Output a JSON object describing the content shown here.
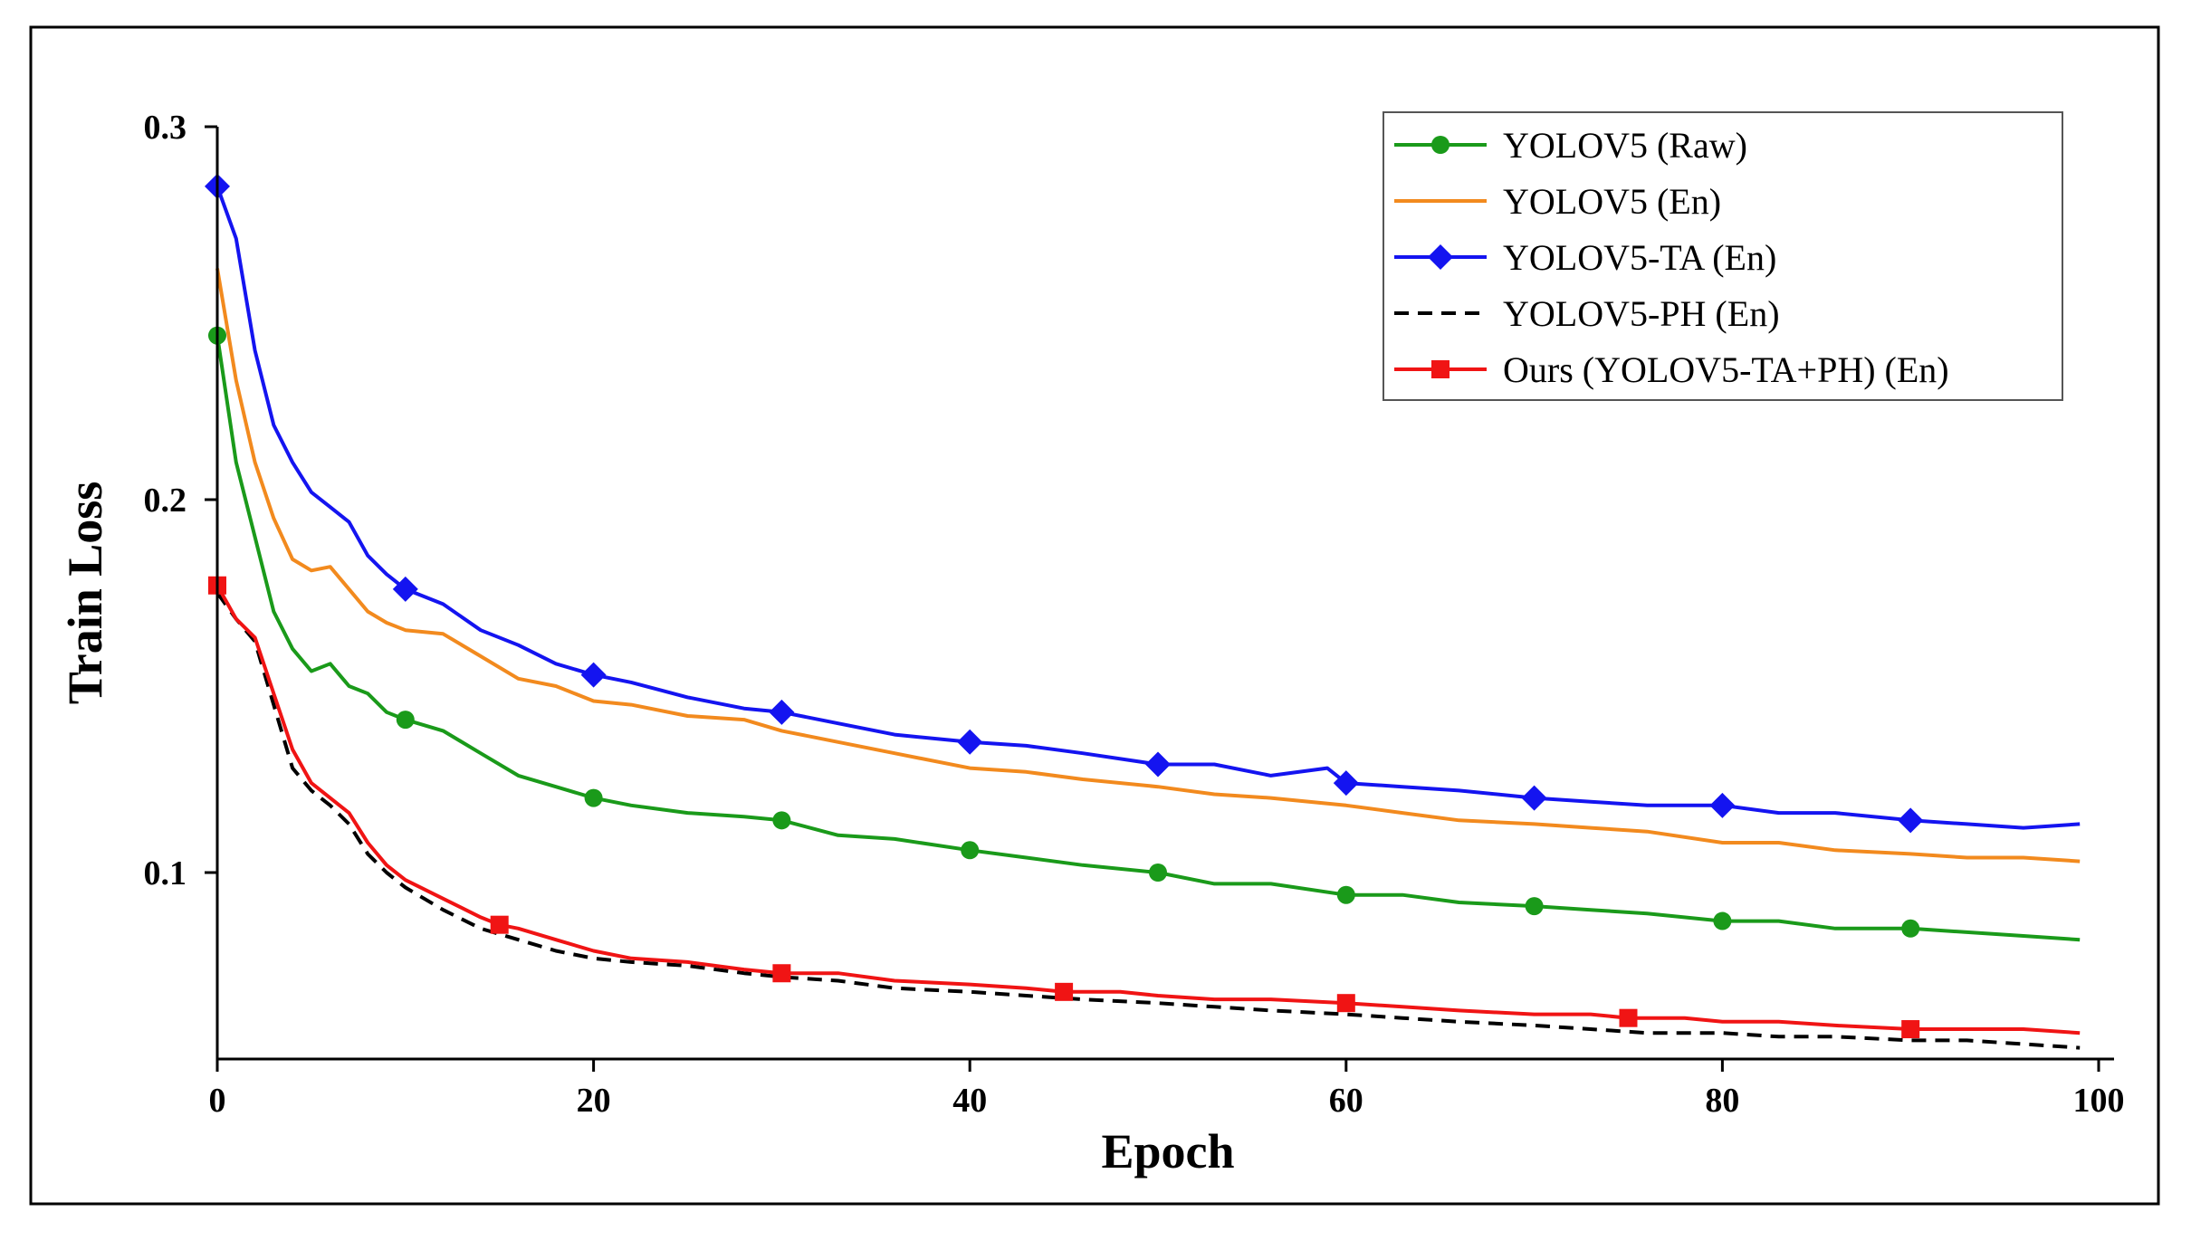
{
  "chart_data": {
    "type": "line",
    "title": "",
    "xlabel": "Epoch",
    "ylabel": "Train Loss",
    "xlim": [
      0,
      100
    ],
    "ylim": [
      0.05,
      0.3
    ],
    "xticks": [
      0,
      20,
      40,
      60,
      80,
      100
    ],
    "xtick_labels": [
      "0",
      "20",
      "40",
      "60",
      "80",
      "100"
    ],
    "yticks": [
      0.1,
      0.2,
      0.3
    ],
    "ytick_labels": [
      "0.1",
      "0.2",
      "0.3"
    ],
    "grid": false,
    "legend_position": "top-right",
    "series": [
      {
        "name": "YOLOV5 (Raw)",
        "color": "#1a9a1a",
        "marker": "circle",
        "dashed": false,
        "marker_epochs": [
          0,
          10,
          20,
          30,
          40,
          50,
          60,
          70,
          80,
          90
        ],
        "x": [
          0,
          1,
          2,
          3,
          4,
          5,
          6,
          7,
          8,
          9,
          10,
          12,
          14,
          16,
          18,
          20,
          22,
          25,
          28,
          30,
          33,
          36,
          40,
          43,
          46,
          50,
          53,
          56,
          60,
          63,
          66,
          70,
          73,
          76,
          80,
          83,
          86,
          90,
          93,
          96,
          99
        ],
        "values": [
          0.244,
          0.21,
          0.19,
          0.17,
          0.16,
          0.154,
          0.156,
          0.15,
          0.148,
          0.143,
          0.141,
          0.138,
          0.132,
          0.126,
          0.123,
          0.12,
          0.118,
          0.116,
          0.115,
          0.114,
          0.11,
          0.109,
          0.106,
          0.104,
          0.102,
          0.1,
          0.097,
          0.097,
          0.094,
          0.094,
          0.092,
          0.091,
          0.09,
          0.089,
          0.087,
          0.087,
          0.085,
          0.085,
          0.084,
          0.083,
          0.082
        ]
      },
      {
        "name": "YOLOV5 (En)",
        "color": "#f28a1e",
        "marker": "none",
        "dashed": false,
        "marker_epochs": [],
        "x": [
          0,
          1,
          2,
          3,
          4,
          5,
          6,
          7,
          8,
          9,
          10,
          12,
          14,
          16,
          18,
          20,
          22,
          25,
          28,
          30,
          33,
          36,
          40,
          43,
          46,
          50,
          53,
          56,
          60,
          63,
          66,
          70,
          73,
          76,
          80,
          83,
          86,
          90,
          93,
          96,
          99
        ],
        "values": [
          0.262,
          0.232,
          0.21,
          0.195,
          0.184,
          0.181,
          0.182,
          0.176,
          0.17,
          0.167,
          0.165,
          0.164,
          0.158,
          0.152,
          0.15,
          0.146,
          0.145,
          0.142,
          0.141,
          0.138,
          0.135,
          0.132,
          0.128,
          0.127,
          0.125,
          0.123,
          0.121,
          0.12,
          0.118,
          0.116,
          0.114,
          0.113,
          0.112,
          0.111,
          0.108,
          0.108,
          0.106,
          0.105,
          0.104,
          0.104,
          0.103
        ]
      },
      {
        "name": "YOLOV5-TA (En)",
        "color": "#1414f0",
        "marker": "diamond",
        "dashed": false,
        "marker_epochs": [
          0,
          10,
          20,
          30,
          40,
          50,
          60,
          70,
          80,
          90
        ],
        "x": [
          0,
          1,
          2,
          3,
          4,
          5,
          6,
          7,
          8,
          9,
          10,
          12,
          14,
          16,
          18,
          20,
          22,
          25,
          28,
          30,
          33,
          36,
          40,
          43,
          46,
          50,
          53,
          56,
          59,
          60,
          63,
          66,
          70,
          73,
          76,
          80,
          83,
          86,
          90,
          93,
          96,
          99
        ],
        "values": [
          0.284,
          0.27,
          0.24,
          0.22,
          0.21,
          0.202,
          0.198,
          0.194,
          0.185,
          0.18,
          0.176,
          0.172,
          0.165,
          0.161,
          0.156,
          0.153,
          0.151,
          0.147,
          0.144,
          0.143,
          0.14,
          0.137,
          0.135,
          0.134,
          0.132,
          0.129,
          0.129,
          0.126,
          0.128,
          0.124,
          0.123,
          0.122,
          0.12,
          0.119,
          0.118,
          0.118,
          0.116,
          0.116,
          0.114,
          0.113,
          0.112,
          0.113
        ]
      },
      {
        "name": "YOLOV5-PH (En)",
        "color": "#000000",
        "marker": "none",
        "dashed": true,
        "marker_epochs": [],
        "x": [
          0,
          1,
          2,
          3,
          4,
          5,
          6,
          7,
          8,
          9,
          10,
          12,
          14,
          16,
          18,
          20,
          22,
          25,
          28,
          30,
          33,
          36,
          40,
          43,
          46,
          50,
          53,
          56,
          60,
          63,
          66,
          70,
          73,
          76,
          80,
          83,
          86,
          90,
          93,
          96,
          99
        ],
        "values": [
          0.175,
          0.168,
          0.162,
          0.145,
          0.128,
          0.122,
          0.118,
          0.113,
          0.105,
          0.1,
          0.096,
          0.09,
          0.085,
          0.082,
          0.079,
          0.077,
          0.076,
          0.075,
          0.073,
          0.072,
          0.071,
          0.069,
          0.068,
          0.067,
          0.066,
          0.065,
          0.064,
          0.063,
          0.062,
          0.061,
          0.06,
          0.059,
          0.058,
          0.057,
          0.057,
          0.056,
          0.056,
          0.055,
          0.055,
          0.054,
          0.053
        ]
      },
      {
        "name": "Ours (YOLOV5-TA+PH) (En)",
        "color": "#f01414",
        "marker": "square",
        "dashed": false,
        "marker_epochs": [
          0,
          15,
          30,
          45,
          60,
          75,
          90
        ],
        "x": [
          0,
          1,
          2,
          3,
          4,
          5,
          6,
          7,
          8,
          9,
          10,
          12,
          14,
          15,
          16,
          18,
          20,
          22,
          25,
          28,
          30,
          33,
          36,
          40,
          43,
          45,
          48,
          50,
          53,
          56,
          60,
          63,
          66,
          70,
          73,
          75,
          78,
          80,
          83,
          86,
          90,
          93,
          96,
          99
        ],
        "values": [
          0.177,
          0.168,
          0.163,
          0.148,
          0.133,
          0.124,
          0.12,
          0.116,
          0.108,
          0.102,
          0.098,
          0.093,
          0.088,
          0.086,
          0.085,
          0.082,
          0.079,
          0.077,
          0.076,
          0.074,
          0.073,
          0.073,
          0.071,
          0.07,
          0.069,
          0.068,
          0.068,
          0.067,
          0.066,
          0.066,
          0.065,
          0.064,
          0.063,
          0.062,
          0.062,
          0.061,
          0.061,
          0.06,
          0.06,
          0.059,
          0.058,
          0.058,
          0.058,
          0.057
        ]
      }
    ]
  }
}
